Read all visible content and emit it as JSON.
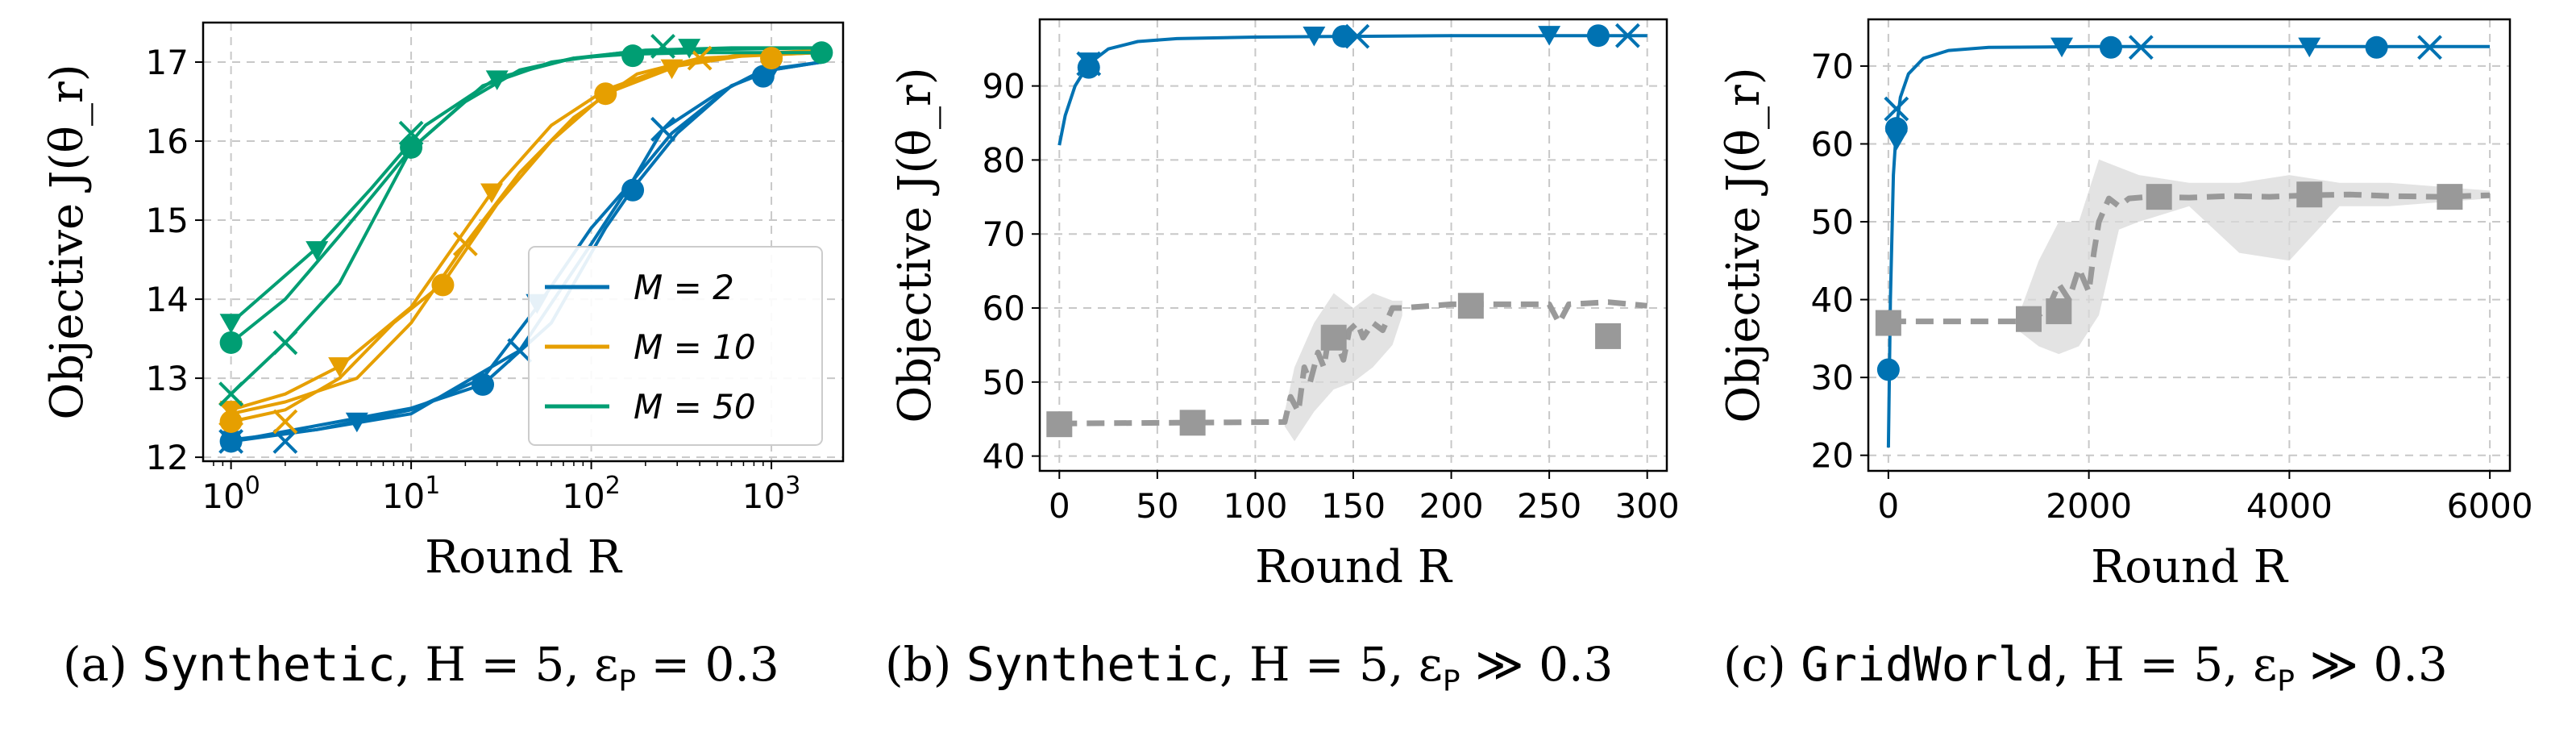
{
  "chart_data": [
    {
      "id": "a",
      "type": "line",
      "xscale": "log",
      "xlim": [
        0.7,
        2500
      ],
      "ylim": [
        11.95,
        17.5
      ],
      "xticks": [
        1,
        10,
        100,
        1000
      ],
      "xtick_labels": [
        "10^0",
        "10^1",
        "10^2",
        "10^3"
      ],
      "yticks": [
        12,
        13,
        14,
        15,
        16,
        17
      ],
      "ytick_labels": [
        "12",
        "13",
        "14",
        "15",
        "16",
        "17"
      ],
      "xlabel": "Round R",
      "ylabel": "Objective J(θ_r)",
      "legend": {
        "position": "lower-right",
        "entries": [
          {
            "label": "M = 2",
            "color": "#0072B2"
          },
          {
            "label": "M = 10",
            "color": "#E69F00"
          },
          {
            "label": "M = 50",
            "color": "#009E73"
          }
        ]
      },
      "series": [
        {
          "name": "M=2 (o)",
          "color": "#0072B2",
          "marker": "circle",
          "x": [
            1,
            3,
            10,
            25,
            60,
            120,
            170,
            300,
            600,
            1000,
            1900
          ],
          "y": [
            12.2,
            12.4,
            12.62,
            12.92,
            13.7,
            14.9,
            15.4,
            16.1,
            16.7,
            16.9,
            17.0
          ],
          "marked": [
            [
              1,
              12.2
            ],
            [
              25,
              12.92
            ],
            [
              170,
              15.38
            ],
            [
              900,
              16.82
            ]
          ]
        },
        {
          "name": "M=2 (v)",
          "color": "#0072B2",
          "marker": "triangle",
          "x": [
            1,
            3,
            10,
            25,
            50,
            100,
            170,
            280,
            600,
            1000,
            1900
          ],
          "y": [
            12.22,
            12.35,
            12.6,
            13.0,
            13.9,
            14.9,
            15.5,
            16.1,
            16.7,
            16.9,
            17.0
          ],
          "marked": [
            [
              1,
              12.22
            ],
            [
              5,
              12.45
            ],
            [
              50,
              13.95
            ],
            [
              1000,
              16.9
            ]
          ]
        },
        {
          "name": "M=2 (x)",
          "color": "#0072B2",
          "marker": "x",
          "x": [
            1,
            3,
            10,
            40,
            100,
            170,
            250,
            500,
            900,
            1900
          ],
          "y": [
            12.2,
            12.35,
            12.55,
            13.35,
            14.7,
            15.5,
            16.15,
            16.6,
            16.9,
            17.0
          ],
          "marked": [
            [
              1,
              12.2
            ],
            [
              2,
              12.2
            ],
            [
              40,
              13.35
            ],
            [
              250,
              16.15
            ]
          ]
        },
        {
          "name": "M=10 (o)",
          "color": "#E69F00",
          "marker": "circle",
          "x": [
            1,
            2,
            4,
            8,
            15,
            30,
            60,
            120,
            300,
            700,
            1900
          ],
          "y": [
            12.45,
            12.6,
            13.0,
            13.7,
            14.2,
            15.2,
            16.0,
            16.6,
            16.95,
            17.08,
            17.12
          ],
          "marked": [
            [
              1,
              12.45
            ],
            [
              15,
              14.18
            ],
            [
              120,
              16.6
            ],
            [
              1000,
              17.05
            ]
          ]
        },
        {
          "name": "M=10 (v)",
          "color": "#E69F00",
          "marker": "triangle",
          "x": [
            1,
            2,
            4,
            10,
            28,
            60,
            120,
            280,
            700,
            1900
          ],
          "y": [
            12.6,
            12.8,
            13.15,
            13.9,
            15.35,
            16.2,
            16.65,
            16.95,
            17.1,
            17.15
          ],
          "marked": [
            [
              1,
              12.6
            ],
            [
              4,
              13.15
            ],
            [
              28,
              15.35
            ],
            [
              280,
              16.92
            ]
          ]
        },
        {
          "name": "M=10 (x)",
          "color": "#E69F00",
          "marker": "x",
          "x": [
            1,
            2,
            5,
            10,
            20,
            40,
            80,
            180,
            400,
            1900
          ],
          "y": [
            12.55,
            12.7,
            13.0,
            13.7,
            14.7,
            15.6,
            16.3,
            16.85,
            17.05,
            17.12
          ],
          "marked": [
            [
              1,
              12.55
            ],
            [
              2,
              12.45
            ],
            [
              20,
              14.7
            ],
            [
              400,
              17.05
            ]
          ]
        },
        {
          "name": "M=50 (o)",
          "color": "#009E73",
          "marker": "circle",
          "x": [
            1,
            2,
            4,
            10,
            20,
            40,
            80,
            160,
            400,
            1900
          ],
          "y": [
            13.45,
            14.0,
            14.8,
            15.9,
            16.5,
            16.9,
            17.05,
            17.1,
            17.12,
            17.12
          ],
          "marked": [
            [
              1,
              13.45
            ],
            [
              10,
              15.92
            ],
            [
              170,
              17.08
            ],
            [
              1900,
              17.12
            ]
          ]
        },
        {
          "name": "M=50 (v)",
          "color": "#009E73",
          "marker": "triangle",
          "x": [
            1,
            2,
            3,
            6,
            12,
            30,
            80,
            200,
            600,
            1900
          ],
          "y": [
            13.7,
            14.3,
            14.65,
            15.4,
            16.2,
            16.8,
            17.05,
            17.15,
            17.18,
            17.18
          ],
          "marked": [
            [
              1,
              13.7
            ],
            [
              3,
              14.62
            ],
            [
              30,
              16.78
            ],
            [
              350,
              17.18
            ]
          ]
        },
        {
          "name": "M=50 (x)",
          "color": "#009E73",
          "marker": "x",
          "x": [
            1,
            2,
            4,
            10,
            25,
            60,
            150,
            500,
            1900
          ],
          "y": [
            12.8,
            13.45,
            14.2,
            15.9,
            16.7,
            17.0,
            17.12,
            17.16,
            17.18
          ],
          "marked": [
            [
              1,
              12.8
            ],
            [
              2,
              13.45
            ],
            [
              10,
              16.1
            ],
            [
              250,
              17.2
            ]
          ]
        }
      ]
    },
    {
      "id": "b",
      "type": "line",
      "xscale": "linear",
      "xlim": [
        -10,
        310
      ],
      "ylim": [
        38,
        99
      ],
      "xticks": [
        0,
        50,
        100,
        150,
        200,
        250,
        300
      ],
      "xtick_labels": [
        "0",
        "50",
        "100",
        "150",
        "200",
        "250",
        "300"
      ],
      "yticks": [
        40,
        50,
        60,
        70,
        80,
        90
      ],
      "ytick_labels": [
        "40",
        "50",
        "60",
        "70",
        "80",
        "90"
      ],
      "xlabel": "Round R",
      "ylabel": "Objective J(θ_r)",
      "series": [
        {
          "name": "blue",
          "color": "#0072B2",
          "marker": "circle",
          "x": [
            0,
            3,
            8,
            15,
            25,
            40,
            60,
            100,
            150,
            200,
            300
          ],
          "y": [
            82,
            86,
            90,
            93,
            95,
            96,
            96.4,
            96.6,
            96.7,
            96.8,
            96.8
          ],
          "marked": [
            [
              15,
              92.5
            ],
            [
              145,
              96.7
            ],
            [
              275,
              96.8
            ]
          ],
          "marked_tri": [
            [
              15,
              93.3
            ],
            [
              130,
              96.8
            ],
            [
              250,
              96.9
            ]
          ],
          "marked_x": [
            [
              15,
              93.0
            ],
            [
              152,
              96.7
            ],
            [
              290,
              96.8
            ]
          ]
        },
        {
          "name": "gray",
          "color": "#999999",
          "marker": "square",
          "dashed": true,
          "x": [
            0,
            60,
            115,
            118,
            122,
            125,
            128,
            132,
            135,
            138,
            142,
            145,
            148,
            152,
            155,
            160,
            165,
            170,
            175,
            200,
            250,
            255,
            260,
            280,
            300
          ],
          "y": [
            44.4,
            44.5,
            44.6,
            48,
            46,
            52,
            50,
            54,
            52,
            57,
            55,
            53,
            57,
            58,
            56,
            58,
            57,
            60,
            60,
            60.5,
            60.5,
            58,
            60.5,
            60.8,
            60.3
          ],
          "band_x": [
            115,
            120,
            125,
            130,
            140,
            150,
            160,
            170,
            175
          ],
          "band_lo": [
            44,
            42,
            44,
            46,
            49,
            50,
            52,
            55,
            59
          ],
          "band_hi": [
            46,
            52,
            55,
            58,
            62,
            60,
            62,
            61,
            61
          ],
          "marked": [
            [
              0,
              44.3
            ],
            [
              68,
              44.5
            ],
            [
              140,
              56
            ],
            [
              210,
              60.3
            ],
            [
              280,
              56.2
            ]
          ]
        }
      ]
    },
    {
      "id": "c",
      "type": "line",
      "xscale": "linear",
      "xlim": [
        -200,
        6200
      ],
      "ylim": [
        18,
        76
      ],
      "xticks": [
        0,
        2000,
        4000,
        6000
      ],
      "xtick_labels": [
        "0",
        "2000",
        "4000",
        "6000"
      ],
      "yticks": [
        20,
        30,
        40,
        50,
        60,
        70
      ],
      "ytick_labels": [
        "20",
        "30",
        "40",
        "50",
        "60",
        "70"
      ],
      "xlabel": "Round R",
      "ylabel": "Objective J(θ_r)",
      "series": [
        {
          "name": "blue",
          "color": "#0072B2",
          "marker": "circle",
          "x": [
            0,
            20,
            50,
            80,
            120,
            200,
            350,
            600,
            1000,
            2000,
            6000
          ],
          "y": [
            21,
            40,
            56,
            62,
            66,
            69,
            71,
            72,
            72.4,
            72.5,
            72.5
          ],
          "marked": [
            [
              0,
              31
            ],
            [
              80,
              62
            ],
            [
              2220,
              72.4
            ],
            [
              4870,
              72.4
            ]
          ],
          "marked_tri": [
            [
              80,
              60.5
            ],
            [
              1730,
              72.5
            ],
            [
              4200,
              72.5
            ]
          ],
          "marked_x": [
            [
              80,
              64.5
            ],
            [
              2520,
              72.4
            ],
            [
              5400,
              72.4
            ]
          ]
        },
        {
          "name": "gray",
          "color": "#999999",
          "marker": "square",
          "dashed": true,
          "x": [
            0,
            1300,
            1450,
            1600,
            1700,
            1800,
            1900,
            2000,
            2050,
            2100,
            2200,
            2300,
            2400,
            2600,
            3000,
            3400,
            3800,
            4200,
            4600,
            5000,
            5500,
            6000
          ],
          "y": [
            37.2,
            37.2,
            37.5,
            39,
            42,
            40,
            44,
            41,
            46,
            50,
            53,
            52,
            53,
            53.2,
            53.1,
            53.3,
            53.2,
            53.4,
            53.5,
            53.3,
            53.2,
            53.4
          ],
          "band_x": [
            1300,
            1500,
            1700,
            1900,
            2100,
            2300,
            2500,
            3000,
            3500,
            4000,
            4500,
            5000,
            6000
          ],
          "band_lo": [
            36,
            34,
            33,
            34,
            38,
            49,
            50,
            52,
            46,
            45,
            52,
            52,
            53
          ],
          "band_hi": [
            38,
            45,
            50,
            50,
            58,
            57,
            56,
            55,
            55,
            56,
            55,
            55,
            54
          ],
          "marked": [
            [
              0,
              37
            ],
            [
              1400,
              37.5
            ],
            [
              1700,
              38.5
            ],
            [
              2700,
              53.2
            ],
            [
              4200,
              53.5
            ],
            [
              5600,
              53.2
            ]
          ]
        }
      ]
    }
  ],
  "captions": [
    {
      "label": "(a)",
      "env": "Synthetic",
      "rest": ", H = 5, ε",
      "sub": "P",
      "tail": " = 0.3"
    },
    {
      "label": "(b)",
      "env": "Synthetic",
      "rest": ", H = 5, ε",
      "sub": "P",
      "tail": " ≫ 0.3"
    },
    {
      "label": "(c)",
      "env": "GridWorld",
      "rest": ", H = 5, ε",
      "sub": "P",
      "tail": " ≫ 0.3"
    }
  ]
}
